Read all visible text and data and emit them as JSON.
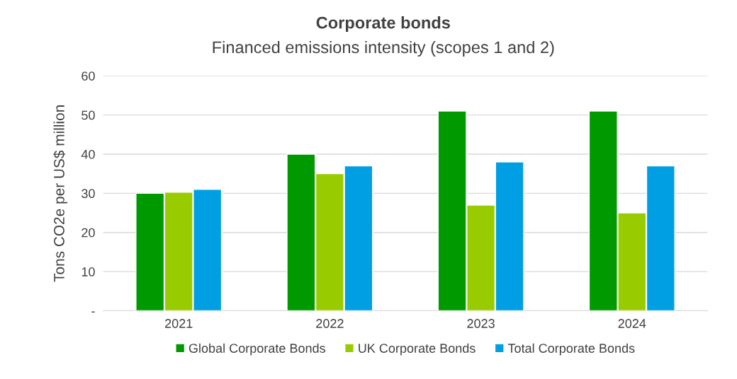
{
  "chart_data": {
    "type": "bar",
    "title": "Corporate bonds",
    "subtitle": "Financed emissions intensity (scopes 1 and 2)",
    "ylabel": "Tons CO2e per US$ million",
    "categories": [
      "2021",
      "2022",
      "2023",
      "2024"
    ],
    "series": [
      {
        "name": "Global Corporate Bonds",
        "color": "#009a00",
        "values": [
          30,
          40,
          51,
          51
        ]
      },
      {
        "name": "UK Corporate Bonds",
        "color": "#99cc00",
        "values": [
          30.3,
          35,
          27,
          25
        ]
      },
      {
        "name": "Total Corporate Bonds",
        "color": "#009fe3",
        "values": [
          31,
          37,
          38,
          37
        ]
      }
    ],
    "ylim": [
      0,
      60
    ],
    "yticks": [
      {
        "value": 0,
        "label": "-"
      },
      10,
      20,
      30,
      40,
      50,
      60
    ],
    "grid": "y",
    "legend": "bottom"
  }
}
